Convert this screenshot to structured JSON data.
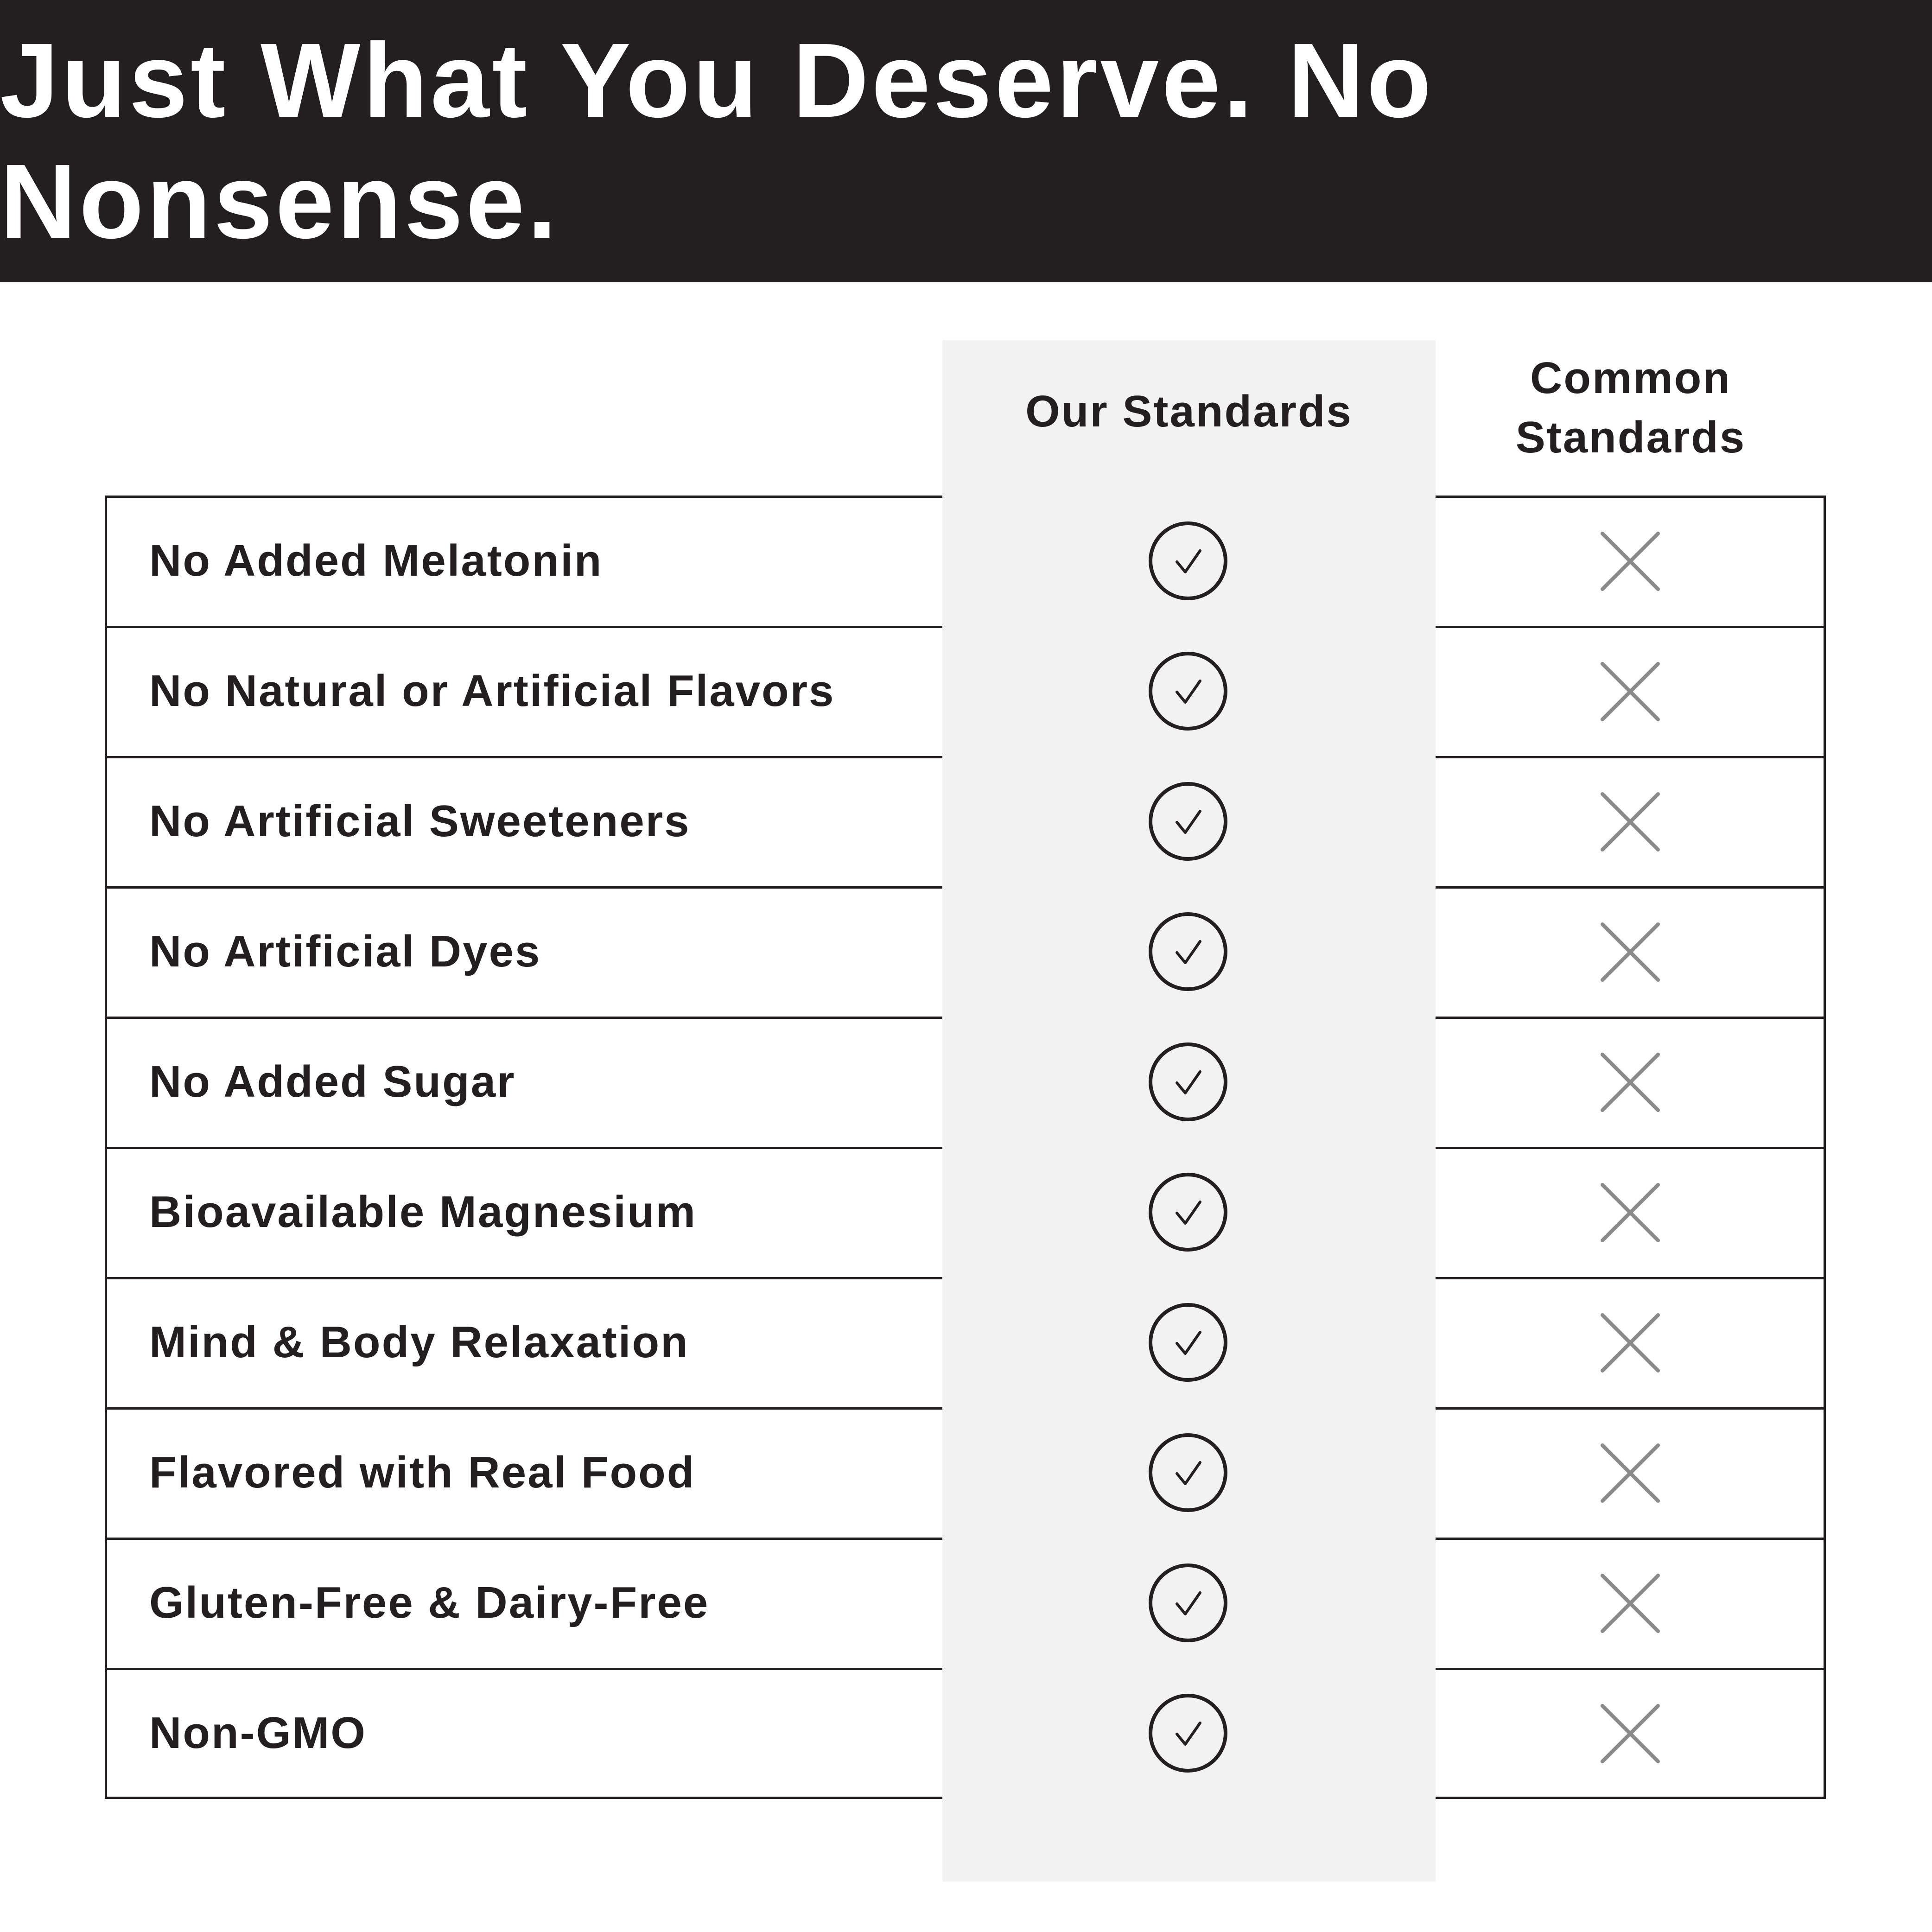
{
  "title": "Just What You Deserve. No Nonsense.",
  "columns": {
    "ours": "Our Standards",
    "common_line1": "Common",
    "common_line2": "Standards"
  },
  "rows": [
    {
      "label": "No Added Melatonin",
      "ours": "check-icon",
      "common": "x-icon"
    },
    {
      "label": "No Natural or Artificial Flavors",
      "ours": "check-icon",
      "common": "x-icon"
    },
    {
      "label": "No Artificial Sweeteners",
      "ours": "check-icon",
      "common": "x-icon"
    },
    {
      "label": "No Artificial Dyes",
      "ours": "check-icon",
      "common": "x-icon"
    },
    {
      "label": "No Added Sugar",
      "ours": "check-icon",
      "common": "x-icon"
    },
    {
      "label": "Bioavailable Magnesium",
      "ours": "check-icon",
      "common": "x-icon"
    },
    {
      "label": "Mind & Body Relaxation",
      "ours": "check-icon",
      "common": "x-icon"
    },
    {
      "label": "Flavored with Real Food",
      "ours": "check-icon",
      "common": "x-icon"
    },
    {
      "label": "Gluten-Free & Dairy-Free",
      "ours": "check-icon",
      "common": "x-icon"
    },
    {
      "label": "Non-GMO",
      "ours": "check-icon",
      "common": "x-icon"
    }
  ],
  "colors": {
    "header_bg": "#231f20",
    "highlight_column": "#f2f2f2",
    "check": "#231f20",
    "x": "#8a8a8a"
  }
}
